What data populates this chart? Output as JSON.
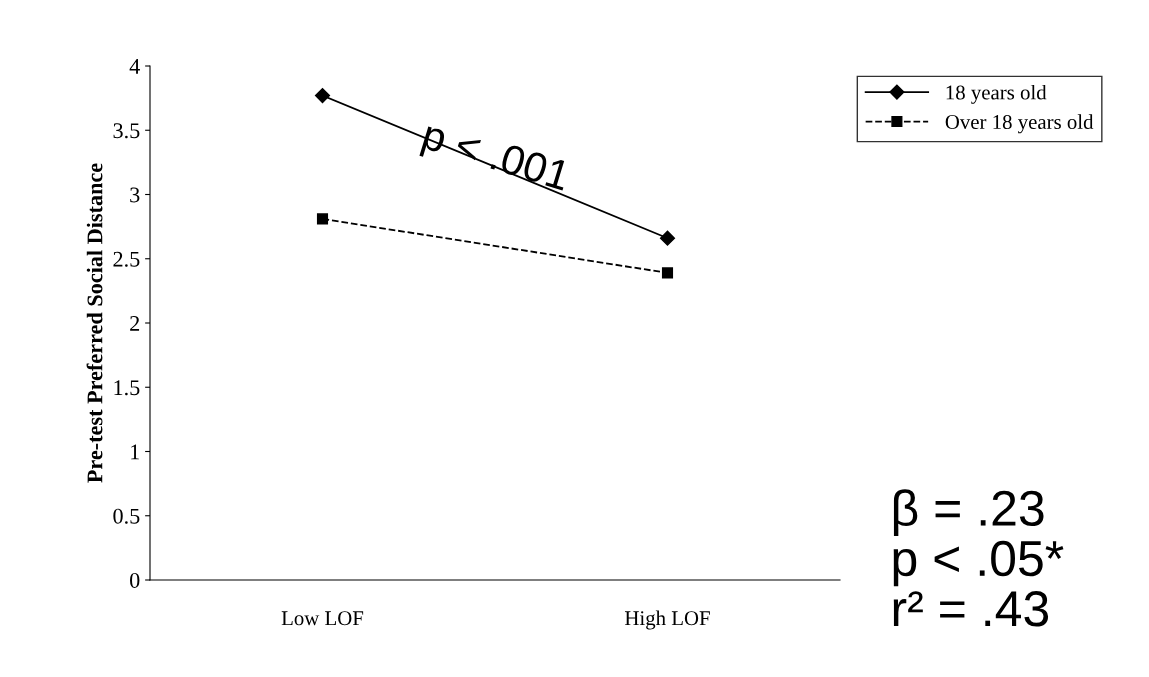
{
  "chart_data": {
    "type": "line",
    "ylabel": "Pre-test Preferred Social Distance",
    "categories": [
      "Low LOF",
      "High LOF"
    ],
    "series": [
      {
        "name": "18 years old",
        "color": "#000000",
        "values": [
          3.77,
          2.66
        ],
        "marker": "diamond",
        "line_style": "solid"
      },
      {
        "name": "Over 18 years old",
        "color": "#000000",
        "values": [
          2.81,
          2.39
        ],
        "marker": "square",
        "line_style": "dashed"
      }
    ],
    "ylim": [
      0,
      4
    ],
    "yticks": [
      0,
      0.5,
      1,
      1.5,
      2,
      2.5,
      3,
      3.5,
      4
    ],
    "grid": false,
    "legend": "top right",
    "annotations": [
      "p < .001",
      "β = .23\np < .05*\nr² = .43"
    ]
  }
}
